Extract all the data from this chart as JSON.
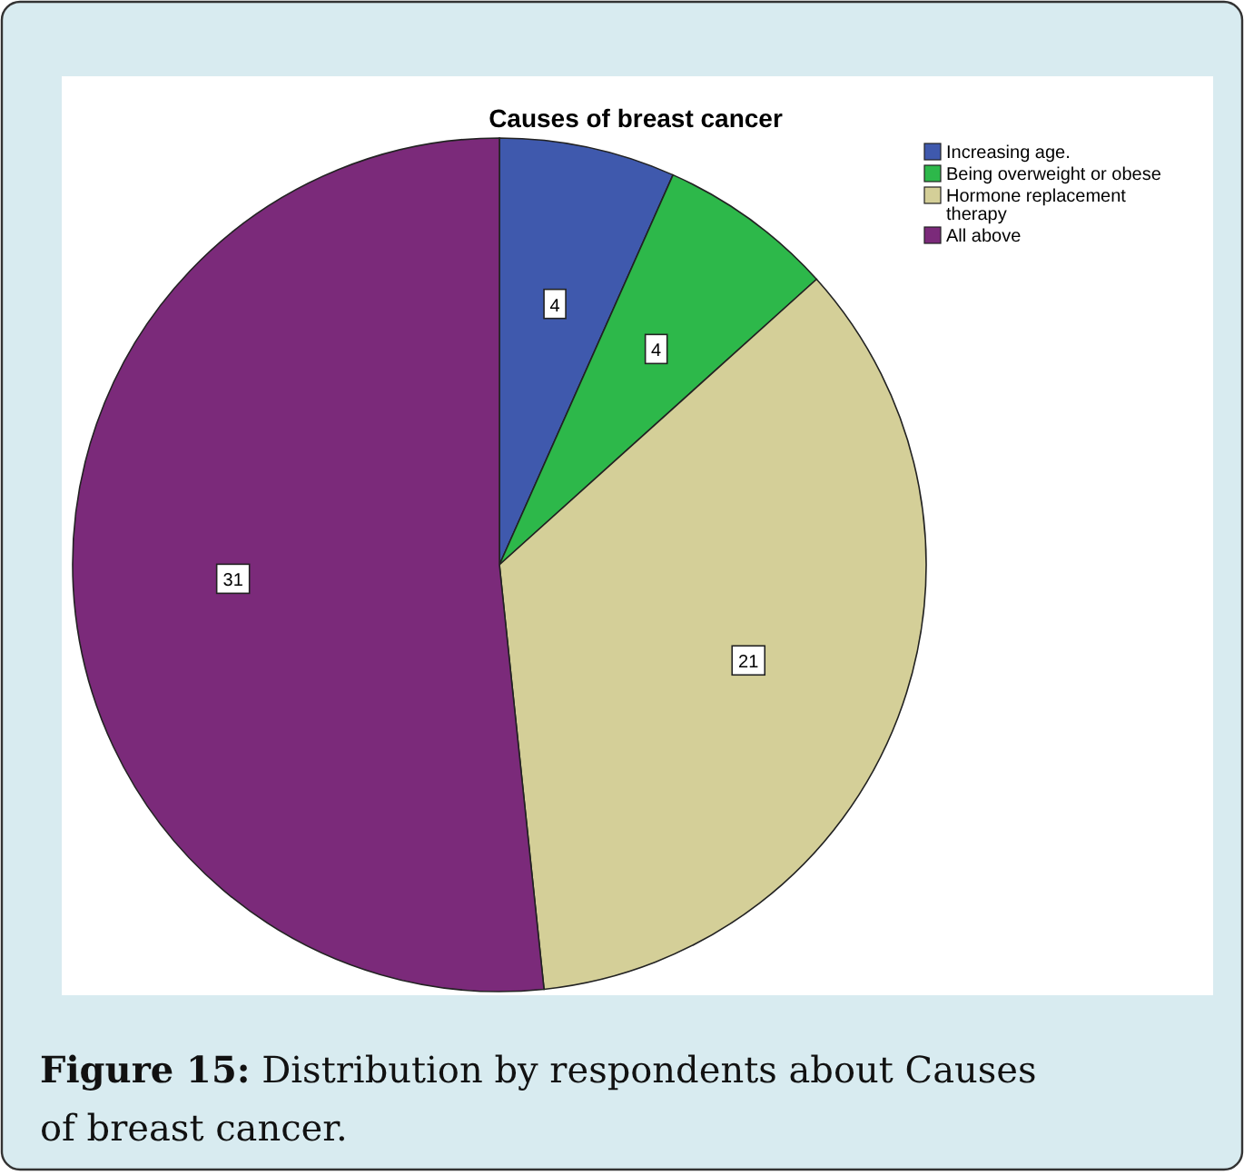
{
  "chart_data": {
    "type": "pie",
    "title": "Causes of breast cancer",
    "categories": [
      "Increasing age.",
      "Being overweight or obese",
      "Hormone replacement therapy",
      "All above"
    ],
    "values": [
      4,
      4,
      21,
      31
    ],
    "colors": [
      "#3f59ad",
      "#2db84a",
      "#d4cf98",
      "#7b2a7a"
    ],
    "data_labels": true,
    "legend": "top right",
    "annotations": [
      "Figure 15: Distribution by respondents about Causes of breast cancer."
    ]
  }
}
